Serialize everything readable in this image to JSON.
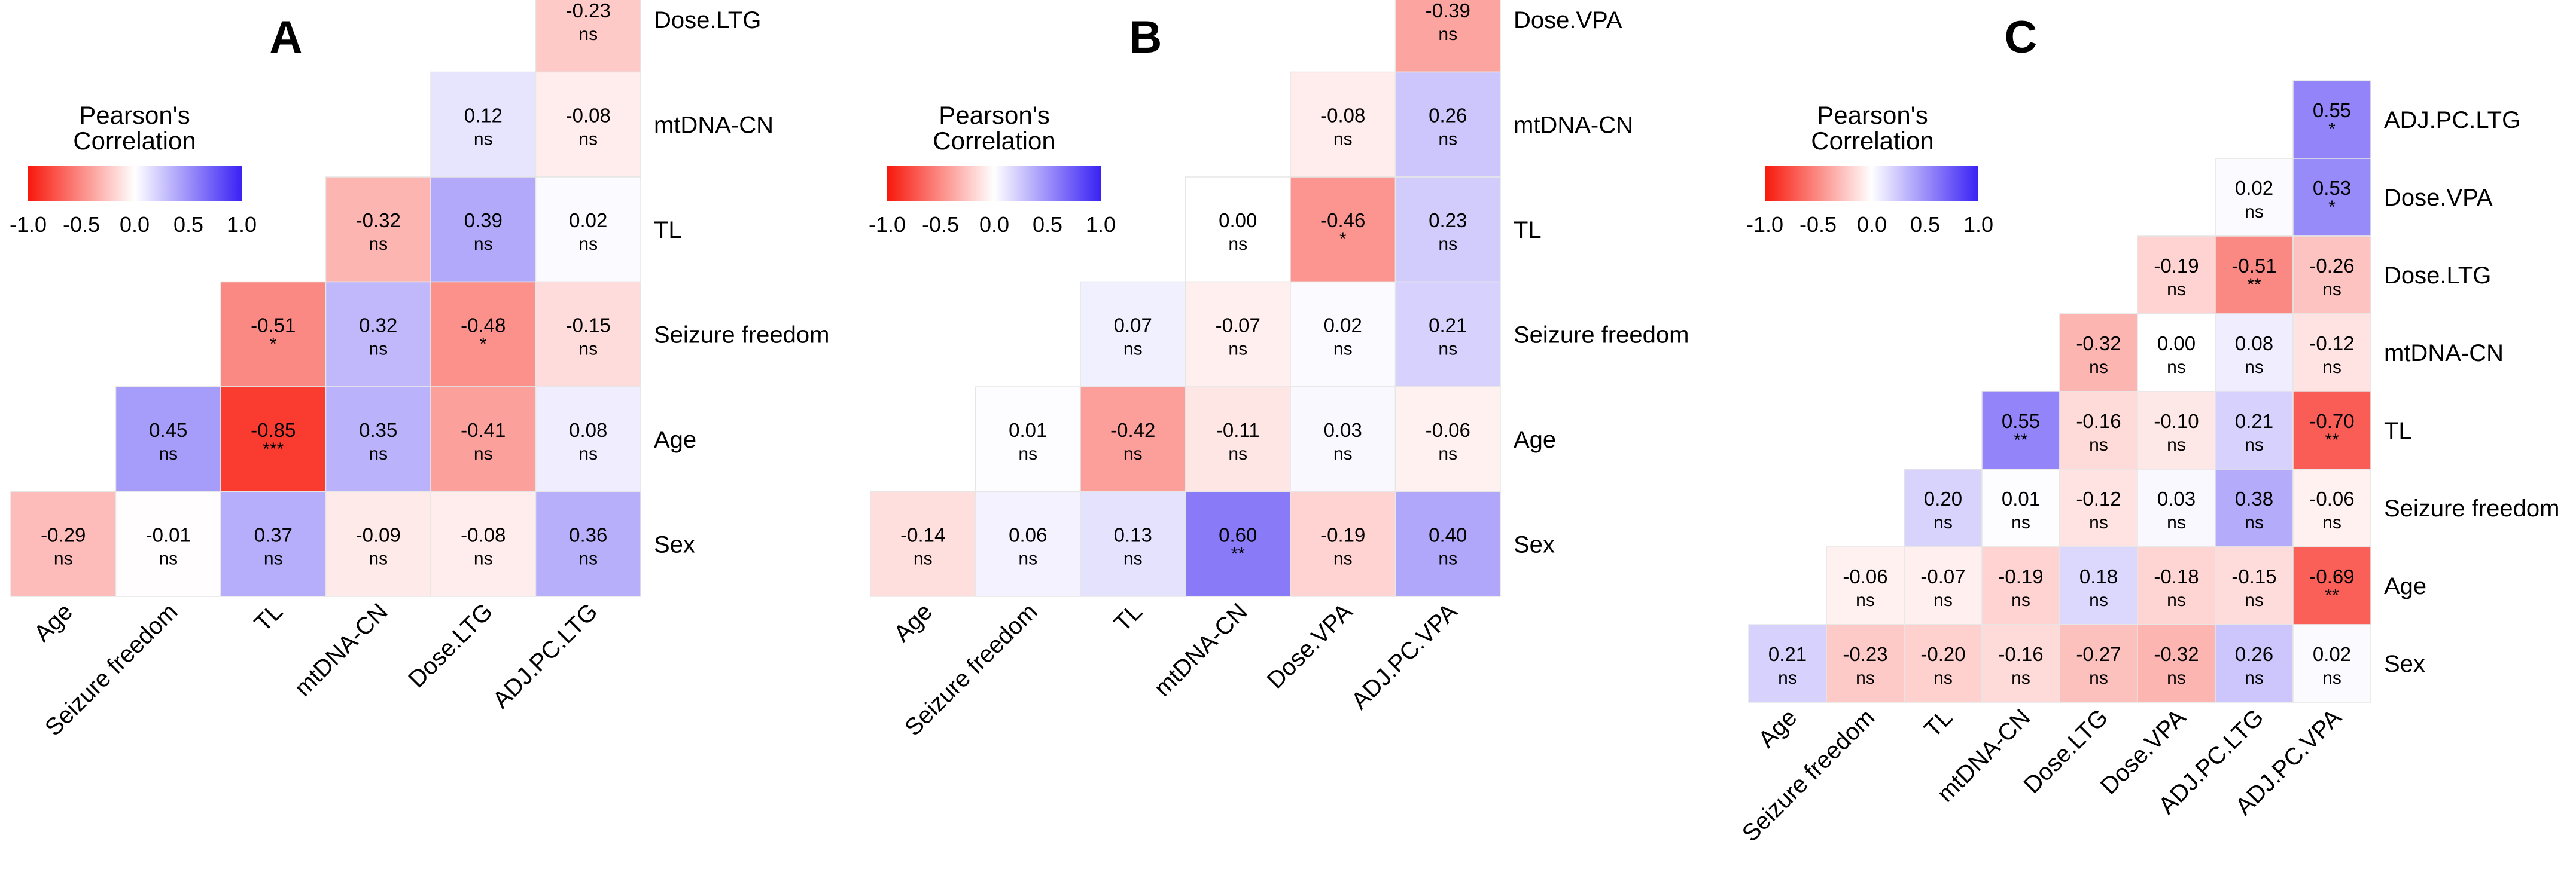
{
  "figure": {
    "panels": [
      "A",
      "B",
      "C"
    ]
  },
  "legend": {
    "title_line1": "Pearson's",
    "title_line2": "Correlation",
    "ticks": [
      "-1.0",
      "-0.5",
      "0.0",
      "0.5",
      "1.0"
    ],
    "colors": {
      "negative": "#f8180c",
      "zero": "#ffffff",
      "positive": "#3a22f4"
    }
  },
  "chart_data": [
    {
      "type": "heatmap",
      "title": "A",
      "colorbar_title": "Pearson's Correlation",
      "colorbar_range": [
        -1.0,
        1.0
      ],
      "x_labels": [
        "Age",
        "Seizure freedom",
        "TL",
        "mtDNA-CN",
        "Dose.LTG",
        "ADJ.PC.LTG"
      ],
      "y_labels": [
        "Dose.LTG",
        "mtDNA-CN",
        "TL",
        "Seizure freedom",
        "Age",
        "Sex"
      ],
      "cells": [
        {
          "row": 0,
          "col": 5,
          "r": -0.23,
          "sig": "ns"
        },
        {
          "row": 1,
          "col": 4,
          "r": 0.12,
          "sig": "ns"
        },
        {
          "row": 1,
          "col": 5,
          "r": -0.08,
          "sig": "ns"
        },
        {
          "row": 2,
          "col": 3,
          "r": -0.32,
          "sig": "ns"
        },
        {
          "row": 2,
          "col": 4,
          "r": 0.39,
          "sig": "ns"
        },
        {
          "row": 2,
          "col": 5,
          "r": 0.02,
          "sig": "ns"
        },
        {
          "row": 3,
          "col": 2,
          "r": -0.51,
          "sig": "*"
        },
        {
          "row": 3,
          "col": 3,
          "r": 0.32,
          "sig": "ns"
        },
        {
          "row": 3,
          "col": 4,
          "r": -0.48,
          "sig": "*"
        },
        {
          "row": 3,
          "col": 5,
          "r": -0.15,
          "sig": "ns"
        },
        {
          "row": 4,
          "col": 1,
          "r": 0.45,
          "sig": "ns"
        },
        {
          "row": 4,
          "col": 2,
          "r": -0.85,
          "sig": "***"
        },
        {
          "row": 4,
          "col": 3,
          "r": 0.35,
          "sig": "ns"
        },
        {
          "row": 4,
          "col": 4,
          "r": -0.41,
          "sig": "ns"
        },
        {
          "row": 4,
          "col": 5,
          "r": 0.08,
          "sig": "ns"
        },
        {
          "row": 5,
          "col": 0,
          "r": -0.29,
          "sig": "ns"
        },
        {
          "row": 5,
          "col": 1,
          "r": -0.01,
          "sig": "ns"
        },
        {
          "row": 5,
          "col": 2,
          "r": 0.37,
          "sig": "ns"
        },
        {
          "row": 5,
          "col": 3,
          "r": -0.09,
          "sig": "ns"
        },
        {
          "row": 5,
          "col": 4,
          "r": -0.08,
          "sig": "ns"
        },
        {
          "row": 5,
          "col": 5,
          "r": 0.36,
          "sig": "ns"
        }
      ]
    },
    {
      "type": "heatmap",
      "title": "B",
      "colorbar_title": "Pearson's Correlation",
      "colorbar_range": [
        -1.0,
        1.0
      ],
      "x_labels": [
        "Age",
        "Seizure freedom",
        "TL",
        "mtDNA-CN",
        "Dose.VPA",
        "ADJ.PC.VPA"
      ],
      "y_labels": [
        "Dose.VPA",
        "mtDNA-CN",
        "TL",
        "Seizure freedom",
        "Age",
        "Sex"
      ],
      "cells": [
        {
          "row": 0,
          "col": 5,
          "r": -0.39,
          "sig": "ns"
        },
        {
          "row": 1,
          "col": 4,
          "r": -0.08,
          "sig": "ns"
        },
        {
          "row": 1,
          "col": 5,
          "r": 0.26,
          "sig": "ns"
        },
        {
          "row": 2,
          "col": 3,
          "r": 0.0,
          "sig": "ns"
        },
        {
          "row": 2,
          "col": 4,
          "r": -0.46,
          "sig": "*"
        },
        {
          "row": 2,
          "col": 5,
          "r": 0.23,
          "sig": "ns"
        },
        {
          "row": 3,
          "col": 2,
          "r": 0.07,
          "sig": "ns"
        },
        {
          "row": 3,
          "col": 3,
          "r": -0.07,
          "sig": "ns"
        },
        {
          "row": 3,
          "col": 4,
          "r": 0.02,
          "sig": "ns"
        },
        {
          "row": 3,
          "col": 5,
          "r": 0.21,
          "sig": "ns"
        },
        {
          "row": 4,
          "col": 1,
          "r": 0.01,
          "sig": "ns"
        },
        {
          "row": 4,
          "col": 2,
          "r": -0.42,
          "sig": "ns"
        },
        {
          "row": 4,
          "col": 3,
          "r": -0.11,
          "sig": "ns"
        },
        {
          "row": 4,
          "col": 4,
          "r": 0.03,
          "sig": "ns"
        },
        {
          "row": 4,
          "col": 5,
          "r": -0.06,
          "sig": "ns"
        },
        {
          "row": 5,
          "col": 0,
          "r": -0.14,
          "sig": "ns"
        },
        {
          "row": 5,
          "col": 1,
          "r": 0.06,
          "sig": "ns"
        },
        {
          "row": 5,
          "col": 2,
          "r": 0.13,
          "sig": "ns"
        },
        {
          "row": 5,
          "col": 3,
          "r": 0.6,
          "sig": "**"
        },
        {
          "row": 5,
          "col": 4,
          "r": -0.19,
          "sig": "ns"
        },
        {
          "row": 5,
          "col": 5,
          "r": 0.4,
          "sig": "ns"
        }
      ]
    },
    {
      "type": "heatmap",
      "title": "C",
      "colorbar_title": "Pearson's Correlation",
      "colorbar_range": [
        -1.0,
        1.0
      ],
      "x_labels": [
        "Age",
        "Seizure freedom",
        "TL",
        "mtDNA-CN",
        "Dose.LTG",
        "Dose.VPA",
        "ADJ.PC.LTG",
        "ADJ.PC.VPA"
      ],
      "y_labels": [
        "ADJ.PC.LTG",
        "Dose.VPA",
        "Dose.LTG",
        "mtDNA-CN",
        "TL",
        "Seizure freedom",
        "Age",
        "Sex"
      ],
      "cells": [
        {
          "row": 0,
          "col": 7,
          "r": 0.55,
          "sig": "*"
        },
        {
          "row": 1,
          "col": 6,
          "r": 0.02,
          "sig": "ns"
        },
        {
          "row": 1,
          "col": 7,
          "r": 0.53,
          "sig": "*"
        },
        {
          "row": 2,
          "col": 5,
          "r": -0.19,
          "sig": "ns"
        },
        {
          "row": 2,
          "col": 6,
          "r": -0.51,
          "sig": "**"
        },
        {
          "row": 2,
          "col": 7,
          "r": -0.26,
          "sig": "ns"
        },
        {
          "row": 3,
          "col": 4,
          "r": -0.32,
          "sig": "ns"
        },
        {
          "row": 3,
          "col": 5,
          "r": 0.0,
          "sig": "ns"
        },
        {
          "row": 3,
          "col": 6,
          "r": 0.08,
          "sig": "ns"
        },
        {
          "row": 3,
          "col": 7,
          "r": -0.12,
          "sig": "ns"
        },
        {
          "row": 4,
          "col": 3,
          "r": 0.55,
          "sig": "**"
        },
        {
          "row": 4,
          "col": 4,
          "r": -0.16,
          "sig": "ns"
        },
        {
          "row": 4,
          "col": 5,
          "r": -0.1,
          "sig": "ns"
        },
        {
          "row": 4,
          "col": 6,
          "r": 0.21,
          "sig": "ns"
        },
        {
          "row": 4,
          "col": 7,
          "r": -0.7,
          "sig": "**"
        },
        {
          "row": 5,
          "col": 2,
          "r": 0.2,
          "sig": "ns"
        },
        {
          "row": 5,
          "col": 3,
          "r": 0.01,
          "sig": "ns"
        },
        {
          "row": 5,
          "col": 4,
          "r": -0.12,
          "sig": "ns"
        },
        {
          "row": 5,
          "col": 5,
          "r": 0.03,
          "sig": "ns"
        },
        {
          "row": 5,
          "col": 6,
          "r": 0.38,
          "sig": "ns"
        },
        {
          "row": 5,
          "col": 7,
          "r": -0.06,
          "sig": "ns"
        },
        {
          "row": 6,
          "col": 1,
          "r": -0.06,
          "sig": "ns"
        },
        {
          "row": 6,
          "col": 2,
          "r": -0.07,
          "sig": "ns"
        },
        {
          "row": 6,
          "col": 3,
          "r": -0.19,
          "sig": "ns"
        },
        {
          "row": 6,
          "col": 4,
          "r": 0.18,
          "sig": "ns"
        },
        {
          "row": 6,
          "col": 5,
          "r": -0.18,
          "sig": "ns"
        },
        {
          "row": 6,
          "col": 6,
          "r": -0.15,
          "sig": "ns"
        },
        {
          "row": 6,
          "col": 7,
          "r": -0.69,
          "sig": "**"
        },
        {
          "row": 7,
          "col": 0,
          "r": 0.21,
          "sig": "ns"
        },
        {
          "row": 7,
          "col": 1,
          "r": -0.23,
          "sig": "ns"
        },
        {
          "row": 7,
          "col": 2,
          "r": -0.2,
          "sig": "ns"
        },
        {
          "row": 7,
          "col": 3,
          "r": -0.16,
          "sig": "ns"
        },
        {
          "row": 7,
          "col": 4,
          "r": -0.27,
          "sig": "ns"
        },
        {
          "row": 7,
          "col": 5,
          "r": -0.32,
          "sig": "ns"
        },
        {
          "row": 7,
          "col": 6,
          "r": 0.26,
          "sig": "ns"
        },
        {
          "row": 7,
          "col": 7,
          "r": 0.02,
          "sig": "ns"
        }
      ]
    }
  ]
}
